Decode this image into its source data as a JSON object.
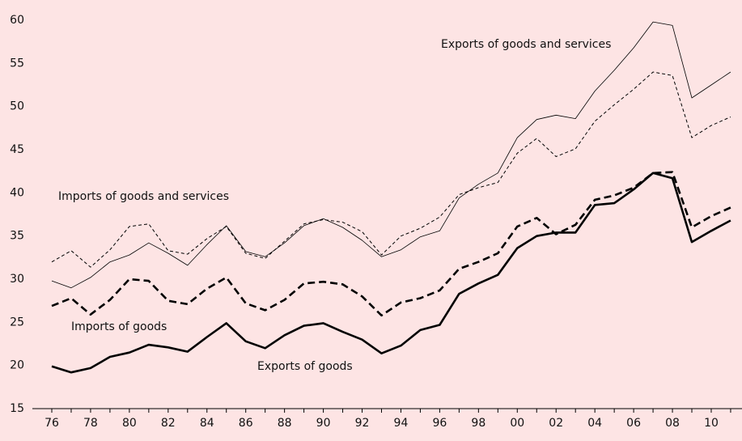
{
  "chart_data": {
    "type": "line",
    "categories": [
      "76",
      null,
      "78",
      null,
      "80",
      null,
      "82",
      null,
      "84",
      null,
      "86",
      null,
      "88",
      null,
      "90",
      null,
      "92",
      null,
      "94",
      null,
      "96",
      null,
      "98",
      null,
      "00",
      null,
      "02",
      null,
      "04",
      null,
      "06",
      null,
      "08",
      null,
      "10",
      null
    ],
    "ylim": [
      15,
      60
    ],
    "yticks": [
      15,
      20,
      25,
      30,
      35,
      40,
      45,
      50,
      55,
      60
    ],
    "grid": false,
    "series": [
      {
        "name": "Exports of goods and services",
        "color": "#000000",
        "dash": false,
        "width": 0.8,
        "values": [
          29.8,
          29.0,
          30.2,
          32.0,
          32.8,
          34.2,
          33.0,
          31.6,
          34.0,
          36.2,
          33.2,
          32.6,
          34.2,
          36.2,
          37.0,
          36.0,
          34.5,
          32.6,
          33.4,
          34.9,
          35.6,
          39.4,
          41.0,
          42.3,
          46.4,
          48.5,
          49.0,
          48.6,
          51.8,
          54.2,
          56.8,
          59.8,
          59.4,
          51.0,
          52.5,
          54.0
        ]
      },
      {
        "name": "Imports of goods and services",
        "color": "#000000",
        "dash": true,
        "width": 1,
        "values": [
          32.0,
          33.3,
          31.4,
          33.4,
          36.1,
          36.4,
          33.3,
          32.9,
          34.7,
          36.1,
          33.0,
          32.4,
          34.4,
          36.4,
          36.9,
          36.6,
          35.5,
          32.8,
          35.0,
          35.9,
          37.2,
          39.8,
          40.6,
          41.2,
          44.6,
          46.3,
          44.2,
          45.1,
          48.3,
          50.2,
          52.0,
          54.0,
          53.6,
          46.4,
          47.8,
          48.8
        ]
      },
      {
        "name": "Imports of goods",
        "color": "#000000",
        "dash": true,
        "width": 2.6,
        "values": [
          26.9,
          27.8,
          25.9,
          27.6,
          30.0,
          29.8,
          27.5,
          27.1,
          28.9,
          30.2,
          27.2,
          26.4,
          27.6,
          29.5,
          29.7,
          29.4,
          28.0,
          25.8,
          27.3,
          27.8,
          28.7,
          31.2,
          32.0,
          33.0,
          36.1,
          37.1,
          35.2,
          36.3,
          39.2,
          39.7,
          40.6,
          42.3,
          42.4,
          36.0,
          37.3,
          38.3
        ]
      },
      {
        "name": "Exports of goods",
        "color": "#000000",
        "dash": false,
        "width": 2.6,
        "values": [
          19.9,
          19.2,
          19.7,
          21.0,
          21.5,
          22.4,
          22.1,
          21.6,
          23.3,
          24.9,
          22.8,
          22.0,
          23.5,
          24.6,
          24.9,
          23.9,
          23.0,
          21.4,
          22.3,
          24.1,
          24.7,
          28.3,
          29.5,
          30.5,
          33.6,
          35.0,
          35.4,
          35.4,
          38.6,
          38.8,
          40.4,
          42.3,
          41.7,
          34.3,
          35.6,
          36.8
        ]
      }
    ]
  }
}
